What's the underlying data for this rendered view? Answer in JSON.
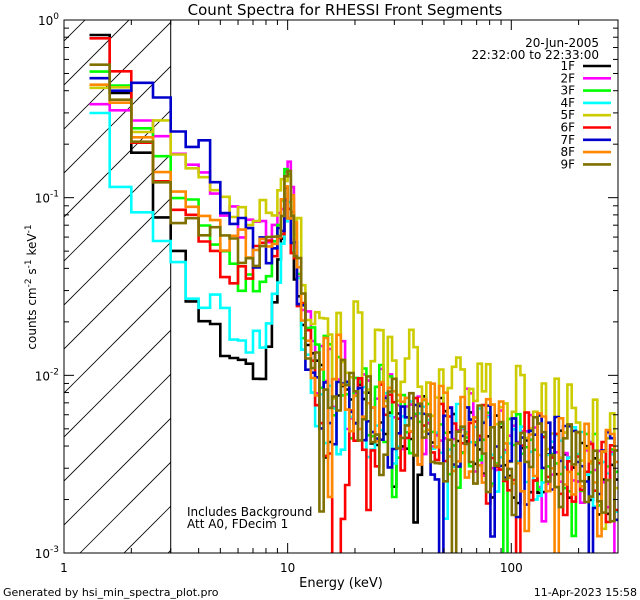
{
  "chart_data": {
    "type": "line",
    "title": "Count Spectra for RHESSI Front Segments",
    "xlabel": "Energy (keV)",
    "ylabel_parts": {
      "main": "counts cm",
      "exp1": "-2",
      "mid1": " s",
      "exp2": "-1",
      "mid2": " keV",
      "exp3": "-1"
    },
    "x_scale": "log",
    "y_scale": "log",
    "xlim": [
      1,
      300
    ],
    "ylim": [
      0.001,
      1
    ],
    "x_ticks": [
      {
        "v": 1,
        "label": "1"
      },
      {
        "v": 10,
        "label": "10"
      },
      {
        "v": 100,
        "label": "100"
      }
    ],
    "y_ticks": [
      {
        "v": 1,
        "base": "10",
        "exp": "0"
      },
      {
        "v": 0.1,
        "base": "10",
        "exp": "-1"
      },
      {
        "v": 0.01,
        "base": "10",
        "exp": "-2"
      },
      {
        "v": 0.001,
        "base": "10",
        "exp": "-3"
      }
    ],
    "hatched_region_kev": [
      1,
      3
    ],
    "date": "20-Jun-2005",
    "time_range": "22:32:00 to 22:33:00",
    "annotation_lines": [
      "Includes Background",
      "Att A0, FDecim 1"
    ],
    "footer_left": "Generated by hsi_min_spectra_plot.pro",
    "footer_right": "11-Apr-2023 15:58",
    "series": [
      {
        "name": "1F",
        "color": "#000000",
        "seed": 11,
        "start": 0.85,
        "points": [
          [
            1.3,
            0.85
          ],
          [
            1.6,
            0.55
          ],
          [
            2,
            0.33
          ],
          [
            2.5,
            0.14
          ],
          [
            3,
            0.055
          ],
          [
            4,
            0.025
          ],
          [
            5,
            0.015
          ],
          [
            6,
            0.011
          ],
          [
            7,
            0.009
          ],
          [
            8,
            0.011
          ],
          [
            9,
            0.035
          ],
          [
            10,
            0.12
          ],
          [
            11,
            0.04
          ],
          [
            12,
            0.016
          ],
          [
            14,
            0.009
          ],
          [
            17,
            0.0055
          ],
          [
            20,
            0.0068
          ],
          [
            30,
            0.0048
          ],
          [
            50,
            0.0042
          ],
          [
            80,
            0.0035
          ],
          [
            150,
            0.0032
          ],
          [
            300,
            0.0025
          ]
        ]
      },
      {
        "name": "2F",
        "color": "#ff00ff",
        "seed": 23,
        "start": 0.28,
        "points": [
          [
            1.3,
            0.28
          ],
          [
            1.6,
            0.27
          ],
          [
            2,
            0.26
          ],
          [
            2.5,
            0.24
          ],
          [
            3,
            0.19
          ],
          [
            4,
            0.14
          ],
          [
            5,
            0.1
          ],
          [
            6,
            0.08
          ],
          [
            7,
            0.06
          ],
          [
            8,
            0.07
          ],
          [
            9,
            0.06
          ],
          [
            10,
            0.14
          ],
          [
            11,
            0.05
          ],
          [
            12,
            0.02
          ],
          [
            14,
            0.012
          ],
          [
            20,
            0.008
          ],
          [
            30,
            0.0065
          ],
          [
            50,
            0.0052
          ],
          [
            100,
            0.004
          ],
          [
            200,
            0.0032
          ],
          [
            300,
            0.0028
          ]
        ]
      },
      {
        "name": "3F",
        "color": "#00ff00",
        "seed": 37,
        "start": 0.55,
        "points": [
          [
            1.3,
            0.55
          ],
          [
            1.6,
            0.42
          ],
          [
            2,
            0.28
          ],
          [
            2.5,
            0.18
          ],
          [
            3,
            0.12
          ],
          [
            4,
            0.07
          ],
          [
            5,
            0.045
          ],
          [
            6,
            0.035
          ],
          [
            7,
            0.03
          ],
          [
            8,
            0.035
          ],
          [
            9,
            0.05
          ],
          [
            10,
            0.14
          ],
          [
            11,
            0.045
          ],
          [
            12,
            0.018
          ],
          [
            14,
            0.011
          ],
          [
            20,
            0.0075
          ],
          [
            30,
            0.006
          ],
          [
            50,
            0.005
          ],
          [
            100,
            0.004
          ],
          [
            200,
            0.0033
          ],
          [
            300,
            0.0027
          ]
        ]
      },
      {
        "name": "4F",
        "color": "#00ffff",
        "seed": 41,
        "start": 0.32,
        "points": [
          [
            1.3,
            0.32
          ],
          [
            1.6,
            0.18
          ],
          [
            2,
            0.1
          ],
          [
            2.5,
            0.065
          ],
          [
            3,
            0.045
          ],
          [
            4,
            0.03
          ],
          [
            5,
            0.022
          ],
          [
            6,
            0.018
          ],
          [
            7,
            0.015
          ],
          [
            8,
            0.016
          ],
          [
            9,
            0.03
          ],
          [
            10,
            0.1
          ],
          [
            11,
            0.035
          ],
          [
            12,
            0.012
          ],
          [
            14,
            0.007
          ],
          [
            20,
            0.0055
          ],
          [
            30,
            0.005
          ],
          [
            50,
            0.0045
          ],
          [
            100,
            0.0038
          ],
          [
            200,
            0.003
          ],
          [
            300,
            0.0025
          ]
        ]
      },
      {
        "name": "5F",
        "color": "#cccc00",
        "seed": 53,
        "start": 0.6,
        "points": [
          [
            1.3,
            0.6
          ],
          [
            1.6,
            0.45
          ],
          [
            2,
            0.32
          ],
          [
            2.5,
            0.24
          ],
          [
            3,
            0.2
          ],
          [
            4,
            0.14
          ],
          [
            5,
            0.1
          ],
          [
            6,
            0.09
          ],
          [
            7,
            0.085
          ],
          [
            8,
            0.09
          ],
          [
            9,
            0.1
          ],
          [
            10,
            0.15
          ],
          [
            11,
            0.07
          ],
          [
            12,
            0.03
          ],
          [
            14,
            0.02
          ],
          [
            20,
            0.015
          ],
          [
            30,
            0.011
          ],
          [
            50,
            0.009
          ],
          [
            100,
            0.007
          ],
          [
            200,
            0.005
          ],
          [
            300,
            0.004
          ]
        ]
      },
      {
        "name": "6F",
        "color": "#ff0000",
        "seed": 67,
        "start": 0.85,
        "points": [
          [
            1.3,
            0.85
          ],
          [
            1.6,
            0.6
          ],
          [
            2,
            0.32
          ],
          [
            2.5,
            0.18
          ],
          [
            3,
            0.11
          ],
          [
            4,
            0.06
          ],
          [
            5,
            0.04
          ],
          [
            6,
            0.035
          ],
          [
            7,
            0.045
          ],
          [
            8,
            0.06
          ],
          [
            9,
            0.05
          ],
          [
            10,
            0.12
          ],
          [
            11,
            0.04
          ],
          [
            12,
            0.015
          ],
          [
            14,
            0.009
          ],
          [
            16,
            0.0025
          ],
          [
            17,
            0.0008
          ],
          [
            20,
            0.006
          ],
          [
            30,
            0.005
          ],
          [
            50,
            0.0045
          ],
          [
            100,
            0.0037
          ],
          [
            200,
            0.003
          ],
          [
            300,
            0.0025
          ]
        ]
      },
      {
        "name": "7F",
        "color": "#0000cc",
        "seed": 79,
        "start": 0.42,
        "points": [
          [
            1.3,
            0.42
          ],
          [
            1.6,
            0.42
          ],
          [
            2,
            0.42
          ],
          [
            2.5,
            0.38
          ],
          [
            3,
            0.33
          ],
          [
            4,
            0.2
          ],
          [
            5,
            0.11
          ],
          [
            6,
            0.07
          ],
          [
            7,
            0.05
          ],
          [
            8,
            0.05
          ],
          [
            9,
            0.05
          ],
          [
            10,
            0.12
          ],
          [
            11,
            0.04
          ],
          [
            12,
            0.015
          ],
          [
            14,
            0.008
          ],
          [
            20,
            0.006
          ],
          [
            30,
            0.005
          ],
          [
            50,
            0.0045
          ],
          [
            100,
            0.0038
          ],
          [
            200,
            0.0031
          ],
          [
            300,
            0.0026
          ]
        ]
      },
      {
        "name": "8F",
        "color": "#ff8800",
        "seed": 83,
        "start": 0.65,
        "points": [
          [
            1.3,
            0.65
          ],
          [
            1.6,
            0.42
          ],
          [
            2,
            0.26
          ],
          [
            2.5,
            0.17
          ],
          [
            3,
            0.13
          ],
          [
            4,
            0.09
          ],
          [
            5,
            0.065
          ],
          [
            6,
            0.055
          ],
          [
            7,
            0.05
          ],
          [
            8,
            0.055
          ],
          [
            9,
            0.06
          ],
          [
            10,
            0.12
          ],
          [
            11,
            0.05
          ],
          [
            12,
            0.02
          ],
          [
            14,
            0.012
          ],
          [
            20,
            0.008
          ],
          [
            30,
            0.006
          ],
          [
            50,
            0.005
          ],
          [
            100,
            0.004
          ],
          [
            200,
            0.0032
          ],
          [
            300,
            0.0027
          ]
        ]
      },
      {
        "name": "9F",
        "color": "#807000",
        "seed": 97,
        "start": 0.6,
        "points": [
          [
            1.3,
            0.6
          ],
          [
            1.6,
            0.4
          ],
          [
            2,
            0.26
          ],
          [
            2.5,
            0.15
          ],
          [
            3,
            0.09
          ],
          [
            4,
            0.065
          ],
          [
            5,
            0.055
          ],
          [
            6,
            0.05
          ],
          [
            7,
            0.05
          ],
          [
            8,
            0.055
          ],
          [
            9,
            0.06
          ],
          [
            10,
            0.13
          ],
          [
            11,
            0.05
          ],
          [
            12,
            0.018
          ],
          [
            14,
            0.01
          ],
          [
            20,
            0.0065
          ],
          [
            30,
            0.0055
          ],
          [
            50,
            0.0045
          ],
          [
            100,
            0.0036
          ],
          [
            200,
            0.003
          ],
          [
            300,
            0.0026
          ]
        ]
      }
    ]
  }
}
